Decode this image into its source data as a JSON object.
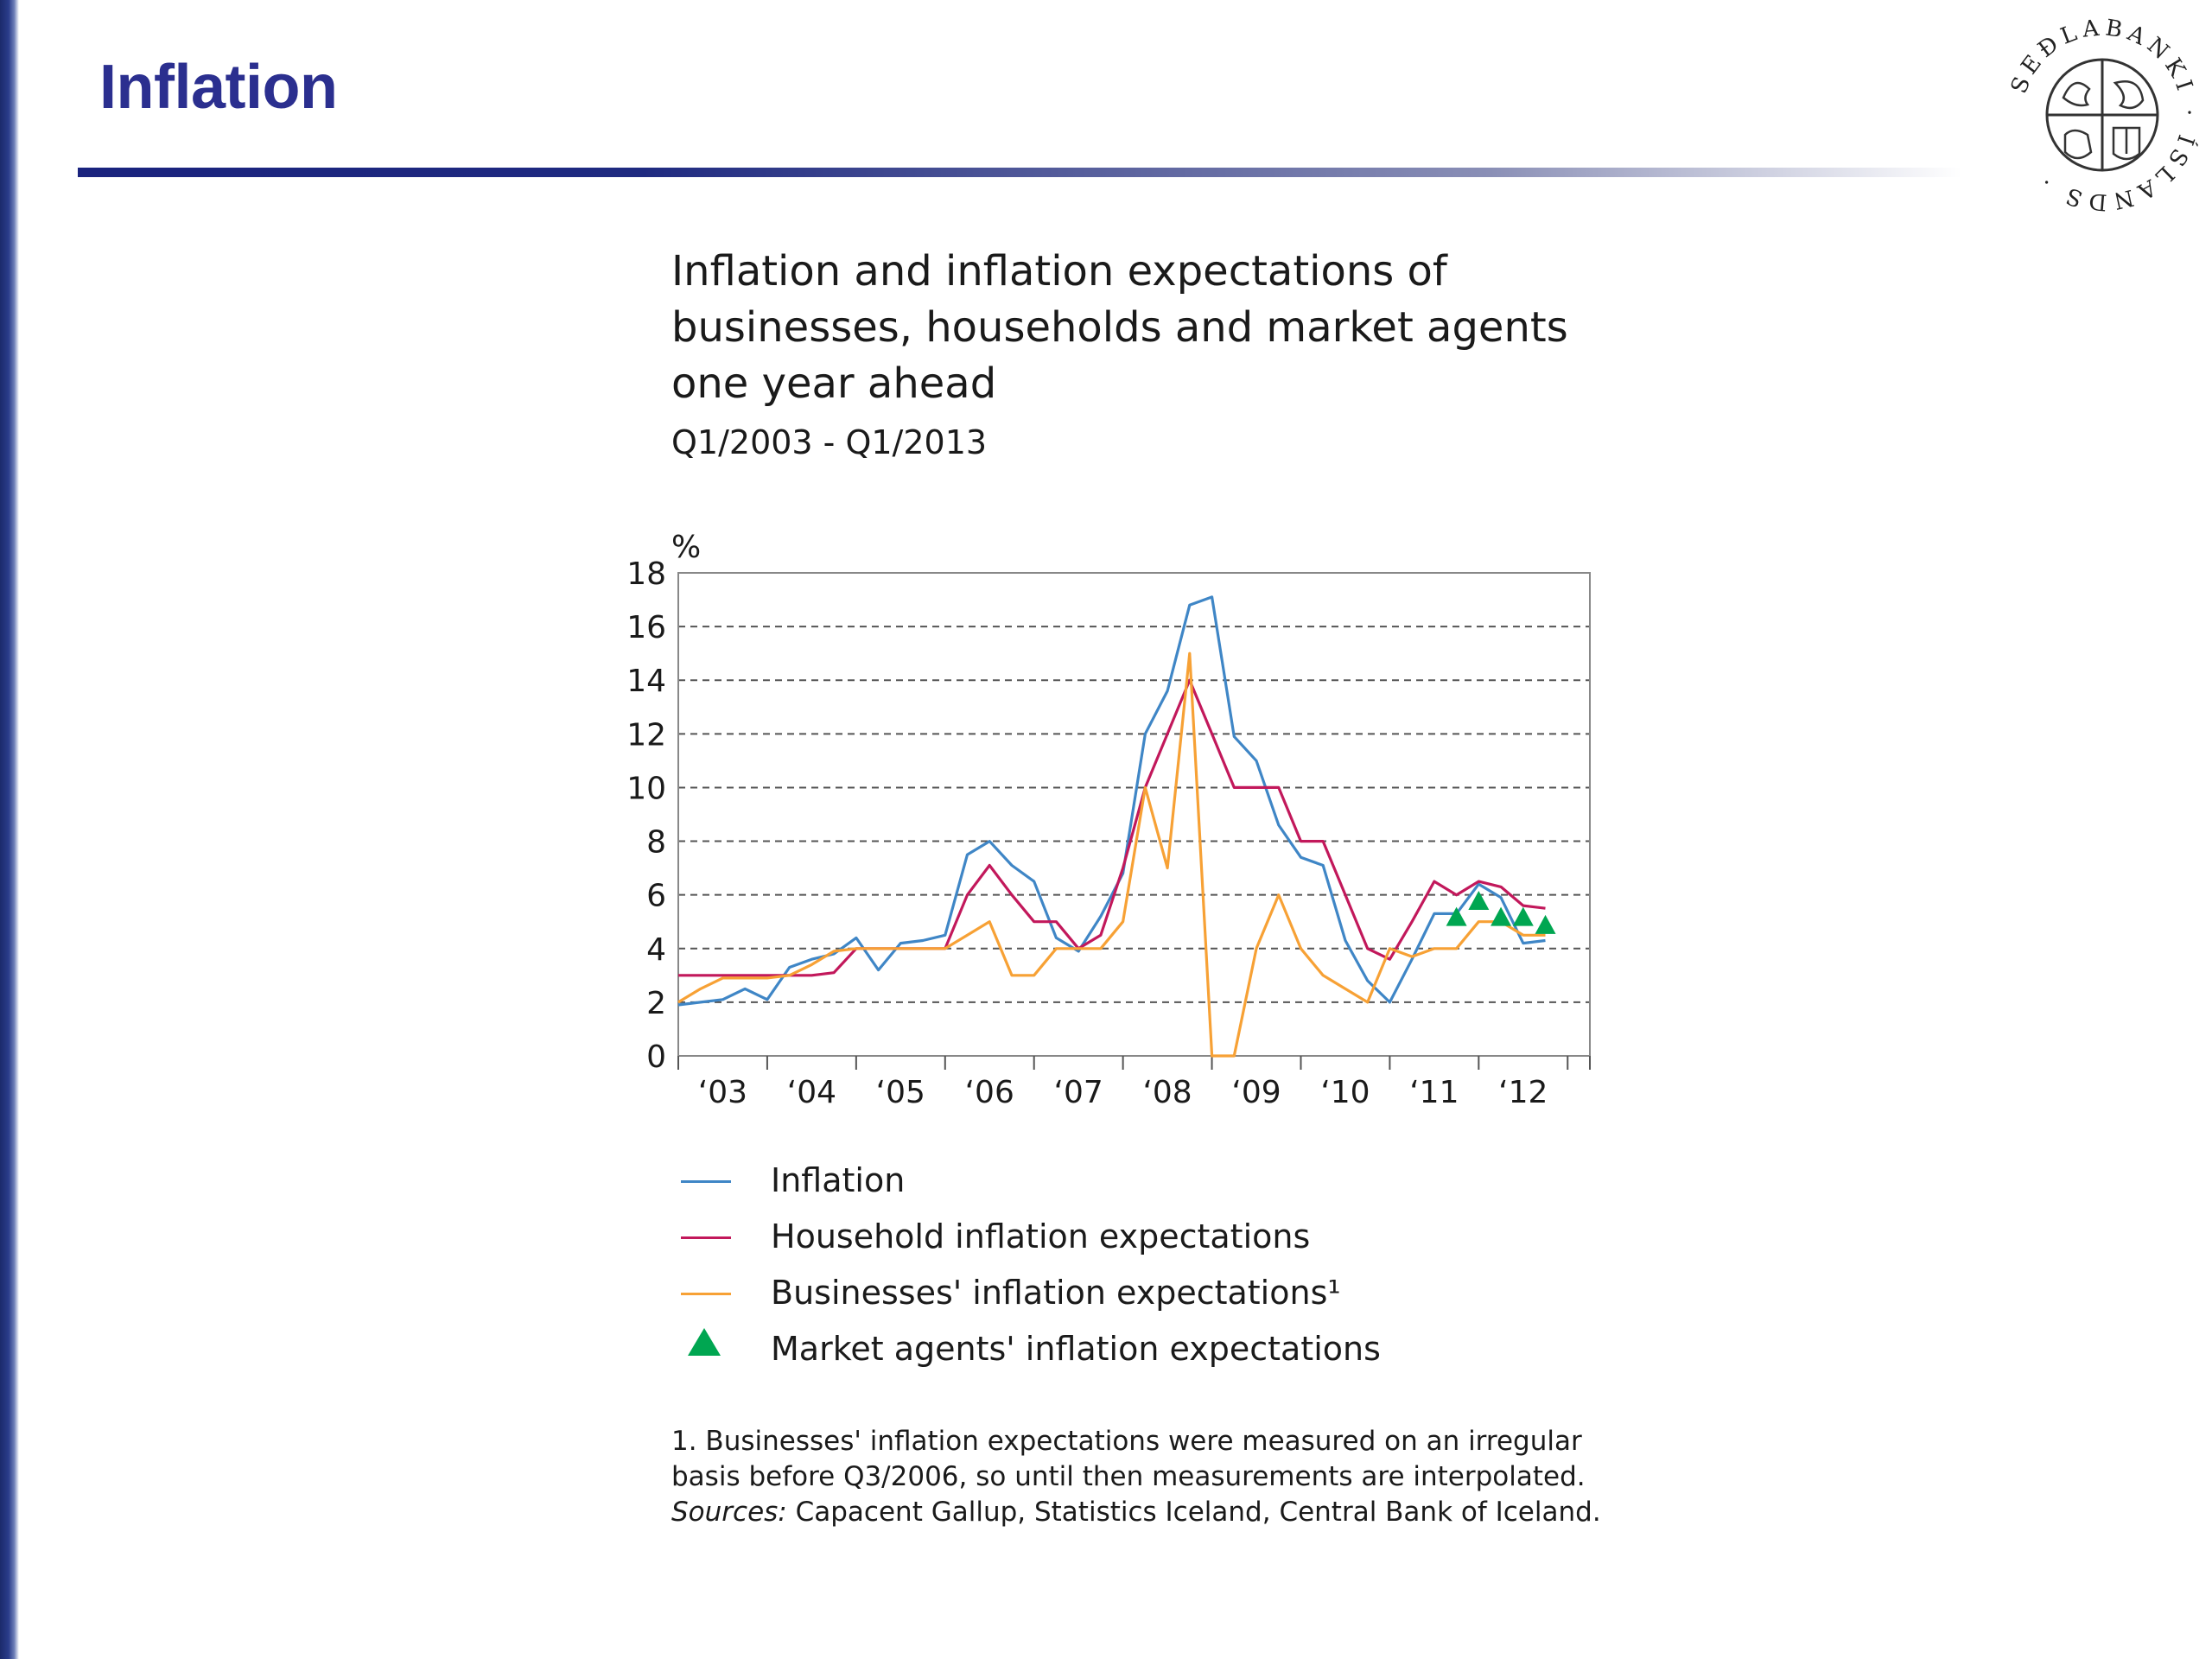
{
  "slide": {
    "title": "Inflation",
    "seal_text": "SEÐLABANKI · ÍSLANDS ·"
  },
  "chart_data": {
    "type": "line",
    "title": "Inflation and inflation expectations of businesses, households and market agents one year ahead",
    "subtitle": "Q1/2003 - Q1/2013",
    "ylabel": "%",
    "xlabel": "",
    "ylim": [
      0,
      18
    ],
    "yticks": [
      0,
      2,
      4,
      6,
      8,
      10,
      12,
      14,
      16,
      18
    ],
    "x_tick_labels": [
      "‘03",
      "‘04",
      "‘05",
      "‘06",
      "‘07",
      "‘08",
      "‘09",
      "‘10",
      "‘11",
      "‘12"
    ],
    "x_start": "Q1/2003",
    "x_end": "Q1/2013",
    "grid": "horizontal dashed",
    "series": [
      {
        "name": "Inflation",
        "color": "#3f86c6",
        "marker": "line",
        "x": [
          "Q1/2003",
          "Q2/2003",
          "Q3/2003",
          "Q4/2003",
          "Q1/2004",
          "Q2/2004",
          "Q3/2004",
          "Q4/2004",
          "Q1/2005",
          "Q2/2005",
          "Q3/2005",
          "Q4/2005",
          "Q1/2006",
          "Q2/2006",
          "Q3/2006",
          "Q4/2006",
          "Q1/2007",
          "Q2/2007",
          "Q3/2007",
          "Q4/2007",
          "Q1/2008",
          "Q2/2008",
          "Q3/2008",
          "Q4/2008",
          "Q1/2009",
          "Q2/2009",
          "Q3/2009",
          "Q4/2009",
          "Q1/2010",
          "Q2/2010",
          "Q3/2010",
          "Q4/2010",
          "Q1/2011",
          "Q2/2011",
          "Q3/2011",
          "Q4/2011",
          "Q1/2012",
          "Q2/2012",
          "Q3/2012",
          "Q4/2012",
          "Q1/2013"
        ],
        "values": [
          1.9,
          2.0,
          2.1,
          2.5,
          2.1,
          3.3,
          3.6,
          3.8,
          4.4,
          3.2,
          4.2,
          4.3,
          4.5,
          7.5,
          8.0,
          7.1,
          6.5,
          4.4,
          3.9,
          5.2,
          6.8,
          12.0,
          13.6,
          16.8,
          17.1,
          11.9,
          11.0,
          8.6,
          7.4,
          7.1,
          4.3,
          2.8,
          2.0,
          3.6,
          5.3,
          5.3,
          6.4,
          5.9,
          4.2,
          4.3,
          null
        ]
      },
      {
        "name": "Household inflation expectations",
        "color": "#c2185b",
        "marker": "line",
        "x": [
          "Q1/2003",
          "Q2/2003",
          "Q3/2003",
          "Q4/2003",
          "Q1/2004",
          "Q2/2004",
          "Q3/2004",
          "Q4/2004",
          "Q1/2005",
          "Q2/2005",
          "Q3/2005",
          "Q4/2005",
          "Q1/2006",
          "Q2/2006",
          "Q3/2006",
          "Q4/2006",
          "Q1/2007",
          "Q2/2007",
          "Q3/2007",
          "Q4/2007",
          "Q1/2008",
          "Q2/2008",
          "Q3/2008",
          "Q4/2008",
          "Q1/2009",
          "Q2/2009",
          "Q3/2009",
          "Q4/2009",
          "Q1/2010",
          "Q2/2010",
          "Q3/2010",
          "Q4/2010",
          "Q1/2011",
          "Q2/2011",
          "Q3/2011",
          "Q4/2011",
          "Q1/2012",
          "Q2/2012",
          "Q3/2012",
          "Q4/2012",
          "Q1/2013"
        ],
        "values": [
          3.0,
          3.0,
          3.0,
          3.0,
          3.0,
          3.0,
          3.0,
          3.1,
          4.0,
          4.0,
          4.0,
          4.0,
          4.0,
          6.0,
          7.1,
          6.0,
          5.0,
          5.0,
          4.0,
          4.5,
          7.0,
          10.0,
          12.0,
          14.0,
          12.0,
          10.0,
          10.0,
          10.0,
          8.0,
          8.0,
          6.0,
          4.0,
          3.6,
          5.0,
          6.5,
          6.0,
          6.5,
          6.3,
          5.6,
          5.5,
          null
        ]
      },
      {
        "name": "Businesses' inflation expectations¹",
        "color": "#f7a135",
        "marker": "line",
        "x": [
          "Q1/2003",
          "Q2/2003",
          "Q3/2003",
          "Q4/2003",
          "Q1/2004",
          "Q2/2004",
          "Q3/2004",
          "Q4/2004",
          "Q1/2005",
          "Q2/2005",
          "Q3/2005",
          "Q4/2005",
          "Q1/2006",
          "Q2/2006",
          "Q3/2006",
          "Q4/2006",
          "Q1/2007",
          "Q2/2007",
          "Q3/2007",
          "Q4/2007",
          "Q1/2008",
          "Q2/2008",
          "Q3/2008",
          "Q4/2008",
          "Q1/2009",
          "Q2/2009",
          "Q3/2009",
          "Q4/2009",
          "Q1/2010",
          "Q2/2010",
          "Q3/2010",
          "Q4/2010",
          "Q1/2011",
          "Q2/2011",
          "Q3/2011",
          "Q4/2011",
          "Q1/2012",
          "Q2/2012",
          "Q3/2012",
          "Q4/2012",
          "Q1/2013"
        ],
        "values": [
          2.0,
          2.5,
          2.9,
          2.9,
          2.9,
          3.0,
          3.4,
          3.9,
          4.0,
          4.0,
          4.0,
          4.0,
          4.0,
          4.5,
          5.0,
          3.0,
          3.0,
          4.0,
          4.0,
          4.0,
          5.0,
          10.0,
          7.0,
          15.0,
          0.0,
          0.0,
          4.0,
          6.0,
          4.0,
          3.0,
          2.5,
          2.0,
          4.0,
          3.7,
          4.0,
          4.0,
          5.0,
          5.0,
          4.5,
          4.5,
          null
        ]
      },
      {
        "name": "Market agents' inflation expectations",
        "color": "#00a651",
        "marker": "triangle",
        "x": [
          "Q4/2011",
          "Q1/2012",
          "Q2/2012",
          "Q3/2012",
          "Q4/2012"
        ],
        "values": [
          5.1,
          5.7,
          5.1,
          5.1,
          4.8
        ]
      }
    ]
  },
  "footnote": {
    "note": "1. Businesses' inflation expectations were measured on an irregular basis before Q3/2006, so until then measurements are interpolated.",
    "sources_label": "Sources:",
    "sources_text": "Capacent Gallup, Statistics Iceland, Central Bank of Iceland."
  }
}
